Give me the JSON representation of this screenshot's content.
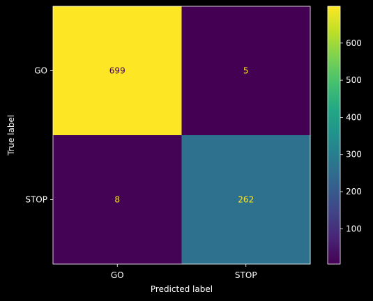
{
  "chart_data": {
    "type": "heatmap",
    "title": "",
    "xlabel": "Predicted label",
    "ylabel": "True label",
    "x_categories": [
      "GO",
      "STOP"
    ],
    "y_categories": [
      "GO",
      "STOP"
    ],
    "matrix": [
      [
        699,
        5
      ],
      [
        8,
        262
      ]
    ],
    "colormap": "viridis",
    "colorbar": {
      "min": 5,
      "max": 699,
      "ticks": [
        100,
        200,
        300,
        400,
        500,
        600
      ]
    },
    "colors": {
      "background": "#000000",
      "text": "#ffffff",
      "high_value_text": "#440154",
      "low_value_text": "#fde725"
    }
  }
}
